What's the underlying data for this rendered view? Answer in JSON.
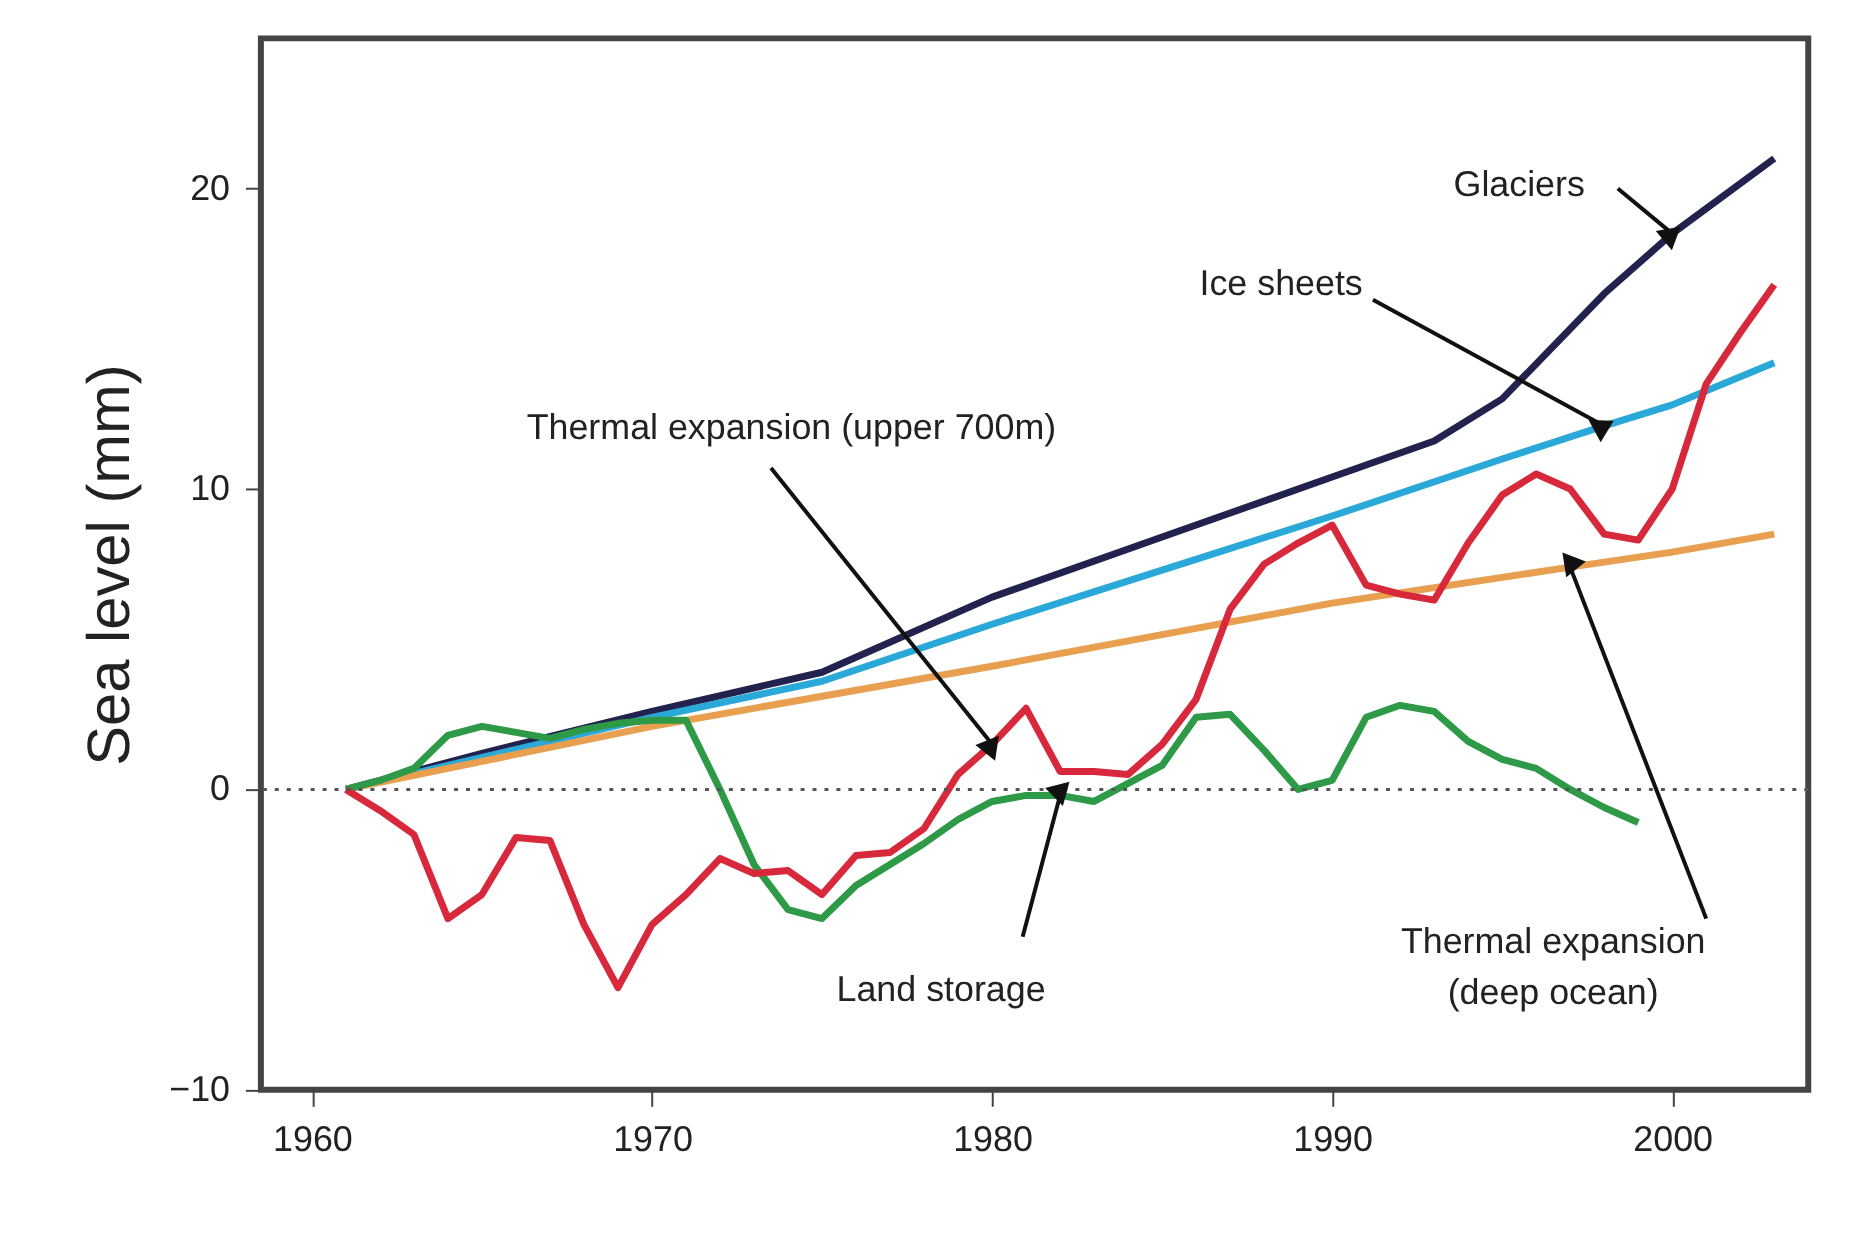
{
  "chart_data": {
    "type": "line",
    "ylabel": "Sea level (mm)",
    "xlim": [
      1958.5,
      2004
    ],
    "ylim": [
      -10,
      25
    ],
    "xticks": [
      1960,
      1970,
      1980,
      1990,
      2000
    ],
    "yticks": [
      -10,
      0,
      10,
      20
    ],
    "grid": false,
    "line_style": "solid",
    "marker": "none",
    "ref_lines": [
      {
        "axis": "y",
        "value": 0,
        "line_style": "dotted",
        "color": "#555555"
      }
    ],
    "series": [
      {
        "color": "#22224e",
        "x": [
          1961,
          1965,
          1970,
          1975,
          1980,
          1985,
          1990,
          1993,
          1995,
          1998,
          2000,
          2003
        ],
        "values": [
          0,
          1.2,
          2.6,
          3.9,
          6.4,
          8.4,
          10.4,
          11.6,
          13,
          16.5,
          18.5,
          21
        ]
      },
      {
        "color": "#2aa8d8",
        "x": [
          1961,
          1970,
          1975,
          1980,
          1985,
          1990,
          1995,
          1998,
          2000,
          2003
        ],
        "values": [
          0,
          2.4,
          3.6,
          5.5,
          7.3,
          9.1,
          11,
          12.1,
          12.8,
          14.2
        ]
      },
      {
        "color": "#e8a050",
        "x": [
          1961,
          1970,
          1980,
          1990,
          1997,
          2000,
          2003
        ],
        "values": [
          0,
          2.1,
          4.1,
          6.2,
          7.4,
          7.9,
          8.5
        ]
      },
      {
        "color": "#2e9a48",
        "x": [
          1961,
          1962,
          1963,
          1964,
          1965,
          1966,
          1967,
          1968,
          1969,
          1970,
          1971,
          1972,
          1973,
          1974,
          1975,
          1976,
          1977,
          1978,
          1979,
          1980,
          1981,
          1982,
          1983,
          1984,
          1985,
          1986,
          1987,
          1988,
          1989,
          1990,
          1991,
          1992,
          1993,
          1994,
          1995,
          1996,
          1997,
          1998,
          1999
        ],
        "values": [
          0,
          0.3,
          0.7,
          1.8,
          2.1,
          1.9,
          1.7,
          2,
          2.2,
          2.3,
          2.3,
          0,
          -2.5,
          -4,
          -4.3,
          -3.2,
          -2.5,
          -1.8,
          -1,
          -0.4,
          -0.2,
          -0.2,
          -0.4,
          0.2,
          0.8,
          2.4,
          2.5,
          1.3,
          0,
          0.3,
          2.4,
          2.8,
          2.6,
          1.6,
          1,
          0.7,
          0,
          -0.6,
          -1.1
        ]
      },
      {
        "color": "#d8283c",
        "x": [
          1961,
          1962,
          1963,
          1964,
          1965,
          1966,
          1967,
          1968,
          1969,
          1970,
          1971,
          1972,
          1973,
          1974,
          1975,
          1976,
          1977,
          1978,
          1979,
          1980,
          1981,
          1982,
          1983,
          1984,
          1985,
          1986,
          1987,
          1988,
          1989,
          1990,
          1991,
          1992,
          1993,
          1994,
          1995,
          1996,
          1997,
          1998,
          1999,
          2000,
          2001,
          2002,
          2003
        ],
        "values": [
          0,
          -0.7,
          -1.5,
          -4.3,
          -3.5,
          -1.6,
          -1.7,
          -4.5,
          -6.6,
          -4.5,
          -3.5,
          -2.3,
          -2.8,
          -2.7,
          -3.5,
          -2.2,
          -2.1,
          -1.3,
          0.5,
          1.5,
          2.7,
          0.6,
          0.6,
          0.5,
          1.5,
          3,
          6,
          7.5,
          8.2,
          8.8,
          6.8,
          6.5,
          6.3,
          8.2,
          9.8,
          10.5,
          10,
          8.5,
          8.3,
          10,
          13.5,
          15.2,
          16.8
        ]
      }
    ],
    "annotations": [
      {
        "text": "Glaciers",
        "x": 2000,
        "y": 18.5
      },
      {
        "text": "Ice sheets",
        "x": 1998,
        "y": 12.1
      },
      {
        "text": "Thermal expansion (upper 700m)",
        "x": 1980,
        "y": 1.5
      },
      {
        "text": "Land storage",
        "x": 1982,
        "y": -0.2
      },
      {
        "text": "Thermal expansion\n(deep ocean)",
        "x": 1997,
        "y": 7.4
      }
    ]
  }
}
